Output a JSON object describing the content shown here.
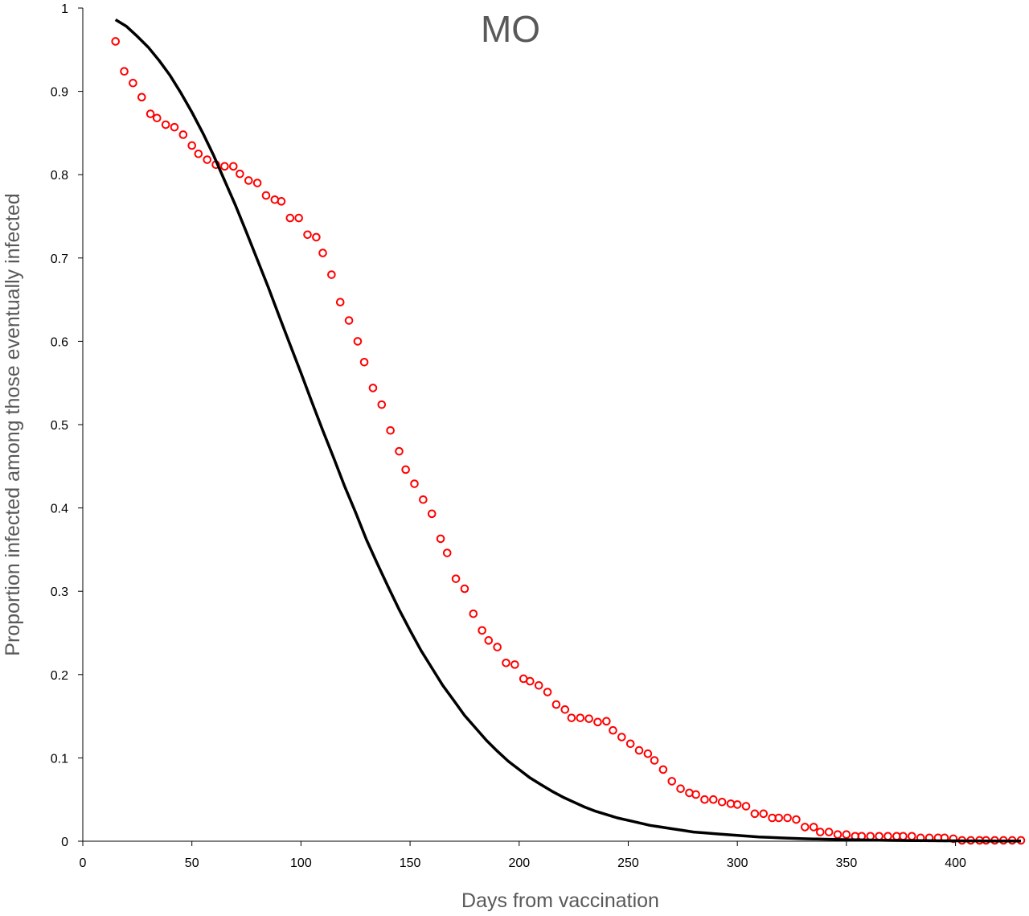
{
  "chart_data": {
    "type": "scatter",
    "title": "MO",
    "xlabel": "Days from vaccination",
    "ylabel": "Proportion infected among those eventually infected",
    "xlim": [
      0,
      430
    ],
    "ylim": [
      0,
      1
    ],
    "x_ticks": [
      0,
      50,
      100,
      150,
      200,
      250,
      300,
      350,
      400
    ],
    "y_ticks": [
      0,
      0.1,
      0.2,
      0.3,
      0.4,
      0.5,
      0.6,
      0.7,
      0.8,
      0.9,
      1
    ],
    "x_tick_labels": [
      "0",
      "50",
      "100",
      "150",
      "200",
      "250",
      "300",
      "350",
      "400"
    ],
    "y_tick_labels": [
      "0",
      "0.1",
      "0.2",
      "0.3",
      "0.4",
      "0.5",
      "0.6",
      "0.7",
      "0.8",
      "0.9",
      "1"
    ],
    "grid": false,
    "legend": "none",
    "colors": {
      "points": "#ff0000",
      "curve": "#000000",
      "axis": "#000000",
      "text": "#595959"
    },
    "series": [
      {
        "kind": "points",
        "marker": "open-circle",
        "x": [
          15,
          19,
          23,
          27,
          31,
          34,
          38,
          42,
          46,
          50,
          53,
          57,
          61,
          65,
          69,
          72,
          76,
          80,
          84,
          88,
          91,
          95,
          99,
          103,
          107,
          110,
          114,
          118,
          122,
          126,
          129,
          133,
          137,
          141,
          145,
          148,
          152,
          156,
          160,
          164,
          167,
          171,
          175,
          179,
          183,
          186,
          190,
          194,
          198,
          202,
          205,
          209,
          213,
          217,
          221,
          224,
          228,
          232,
          236,
          240,
          243,
          247,
          251,
          255,
          259,
          262,
          266,
          270,
          274,
          278,
          281,
          285,
          289,
          293,
          297,
          300,
          304,
          308,
          312,
          316,
          319,
          323,
          327,
          331,
          335,
          338,
          342,
          346,
          350,
          354,
          357,
          361,
          365,
          369,
          373,
          376,
          380,
          384,
          388,
          392,
          395,
          399,
          403,
          407,
          411,
          414,
          418,
          422,
          426,
          430
        ],
        "y": [
          0.96,
          0.924,
          0.91,
          0.893,
          0.873,
          0.868,
          0.86,
          0.857,
          0.848,
          0.835,
          0.825,
          0.818,
          0.812,
          0.81,
          0.81,
          0.801,
          0.793,
          0.79,
          0.775,
          0.77,
          0.768,
          0.748,
          0.748,
          0.728,
          0.725,
          0.706,
          0.68,
          0.647,
          0.625,
          0.6,
          0.575,
          0.544,
          0.524,
          0.493,
          0.468,
          0.446,
          0.429,
          0.41,
          0.393,
          0.363,
          0.346,
          0.315,
          0.303,
          0.273,
          0.253,
          0.241,
          0.233,
          0.214,
          0.212,
          0.195,
          0.192,
          0.187,
          0.179,
          0.164,
          0.158,
          0.148,
          0.148,
          0.147,
          0.143,
          0.144,
          0.133,
          0.125,
          0.117,
          0.109,
          0.105,
          0.097,
          0.086,
          0.072,
          0.063,
          0.058,
          0.056,
          0.05,
          0.05,
          0.047,
          0.045,
          0.044,
          0.042,
          0.033,
          0.033,
          0.028,
          0.028,
          0.028,
          0.026,
          0.017,
          0.017,
          0.011,
          0.011,
          0.008,
          0.008,
          0.006,
          0.006,
          0.006,
          0.006,
          0.006,
          0.006,
          0.006,
          0.006,
          0.004,
          0.004,
          0.004,
          0.004,
          0.003,
          0.001,
          0.001,
          0.001,
          0.001,
          0.001,
          0.001,
          0.001,
          0.001
        ]
      },
      {
        "kind": "line",
        "x": [
          15,
          20,
          25,
          30,
          35,
          40,
          45,
          50,
          55,
          60,
          65,
          70,
          75,
          80,
          85,
          90,
          95,
          100,
          105,
          110,
          115,
          120,
          125,
          130,
          135,
          140,
          145,
          150,
          155,
          160,
          165,
          170,
          175,
          180,
          185,
          190,
          195,
          200,
          205,
          210,
          215,
          220,
          225,
          230,
          235,
          240,
          245,
          250,
          255,
          260,
          265,
          270,
          275,
          280,
          285,
          290,
          295,
          300,
          305,
          310,
          315,
          320,
          325,
          330,
          335,
          340,
          345,
          350,
          355,
          360,
          365,
          370,
          375,
          380,
          385,
          390,
          395,
          400,
          405,
          410,
          415,
          420,
          425,
          430
        ],
        "y": [
          0.986,
          0.978,
          0.966,
          0.953,
          0.937,
          0.919,
          0.898,
          0.875,
          0.85,
          0.823,
          0.793,
          0.763,
          0.731,
          0.698,
          0.665,
          0.63,
          0.596,
          0.562,
          0.527,
          0.493,
          0.46,
          0.426,
          0.395,
          0.362,
          0.333,
          0.305,
          0.278,
          0.253,
          0.229,
          0.208,
          0.187,
          0.169,
          0.151,
          0.136,
          0.121,
          0.108,
          0.096,
          0.086,
          0.076,
          0.068,
          0.06,
          0.053,
          0.047,
          0.041,
          0.036,
          0.032,
          0.028,
          0.025,
          0.022,
          0.019,
          0.017,
          0.015,
          0.013,
          0.011,
          0.01,
          0.009,
          0.008,
          0.007,
          0.006,
          0.005,
          0.0045,
          0.004,
          0.0035,
          0.003,
          0.0027,
          0.0024,
          0.0021,
          0.0018,
          0.0016,
          0.0014,
          0.0012,
          0.001,
          0.0009,
          0.0008,
          0.0007,
          0.0006,
          0.0005,
          0.0005,
          0.0004,
          0.0004,
          0.0003,
          0.0003,
          0.0003,
          0.0002
        ]
      }
    ]
  }
}
